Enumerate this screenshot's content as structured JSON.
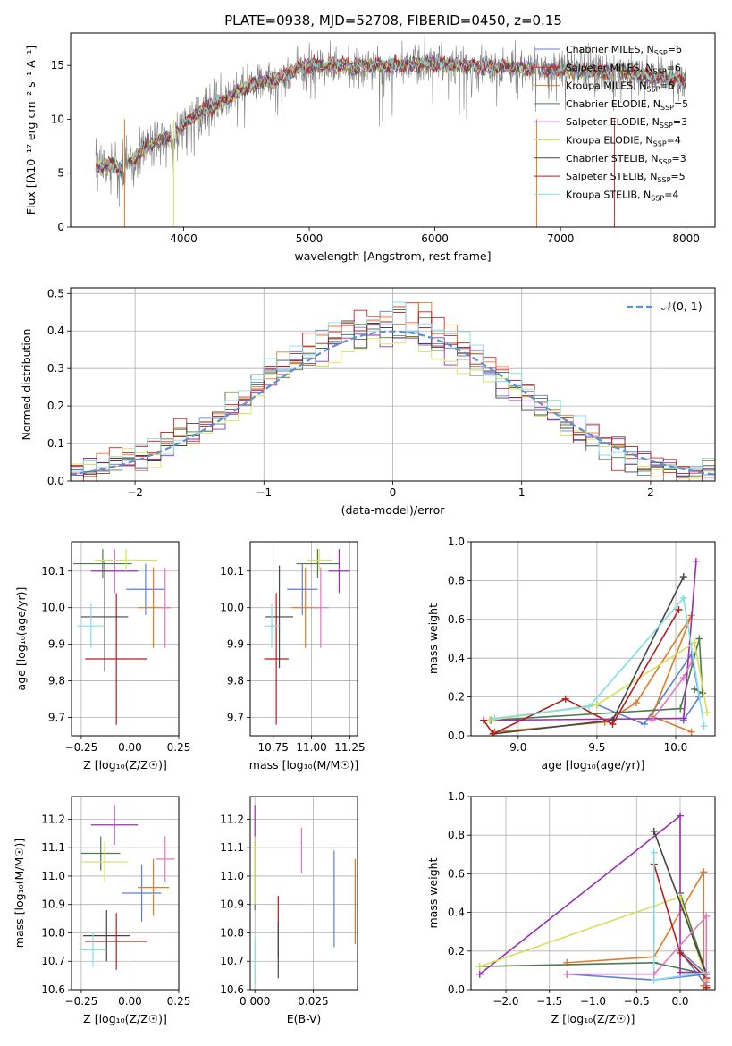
{
  "title": "PLATE=0938, MJD=52708, FIBERID=0450, z=0.15",
  "chart_data": [
    {
      "id": "spectrum",
      "type": "line",
      "xlabel": "wavelength [Angstrom, rest frame]",
      "ylabel": "Flux [f$_\\lambda$10$^{-17}$ erg cm$^{-2}$ s$^{-1}$ A$^{-1}$]",
      "ylabel_display": "Flux [fλ10⁻¹⁷ erg cm⁻² s⁻¹ A⁻¹]",
      "xlim": [
        3100,
        8230
      ],
      "ylim": [
        0,
        18
      ],
      "xticks": [
        4000,
        5000,
        6000,
        7000,
        8000
      ],
      "yticks": [
        0,
        5,
        10,
        15
      ],
      "data_continuum": {
        "x": [
          3300,
          3400,
          3500,
          3600,
          3700,
          3800,
          3900,
          4000,
          4100,
          4200,
          4300,
          4400,
          4500,
          4600,
          4700,
          4800,
          4900,
          5000,
          5200,
          5400,
          5600,
          5800,
          6000,
          6200,
          6400,
          6600,
          6800,
          7000,
          7200,
          7400,
          7600,
          7800,
          8000
        ],
        "y": [
          5.5,
          5.8,
          5.5,
          6.2,
          7.5,
          8.0,
          8.3,
          9.5,
          10.5,
          11.0,
          11.5,
          12.3,
          13.0,
          13.4,
          13.6,
          14.0,
          14.6,
          15.0,
          15.0,
          14.9,
          15.0,
          15.1,
          15.1,
          15.0,
          14.9,
          14.8,
          14.7,
          14.6,
          14.5,
          14.4,
          14.2,
          13.9,
          13.5
        ]
      },
      "legend": [
        {
          "label": "Chabrier MILES, N",
          "sub": "SSP",
          "n": "=6",
          "color": "#5b7fd6"
        },
        {
          "label": "Salpeter MILES, N",
          "sub": "SSP",
          "n": "=6",
          "color": "#d62728"
        },
        {
          "label": "Kroupa MILES, N",
          "sub": "SSP",
          "n": "=5",
          "color": "#e07b28"
        },
        {
          "label": "Chabrier ELODIE, N",
          "sub": "SSP",
          "n": "=5",
          "color": "#4d7a4d"
        },
        {
          "label": "Salpeter ELODIE, N",
          "sub": "SSP",
          "n": "=3",
          "color": "#9a2fae"
        },
        {
          "label": "Kroupa ELODIE, N",
          "sub": "SSP",
          "n": "=4",
          "color": "#d4e157"
        },
        {
          "label": "Chabrier STELIB, N",
          "sub": "SSP",
          "n": "=3",
          "color": "#444444"
        },
        {
          "label": "Salpeter STELIB, N",
          "sub": "SSP",
          "n": "=5",
          "color": "#b71c1c"
        },
        {
          "label": "Kroupa STELIB, N",
          "sub": "SSP",
          "n": "=4",
          "color": "#80deea"
        }
      ],
      "legend_placement": "right"
    },
    {
      "id": "residuals",
      "type": "histogram",
      "xlabel": "(data-model)/error",
      "ylabel": "Normed distribution",
      "xlim": [
        -2.5,
        2.5
      ],
      "ylim": [
        0,
        0.515
      ],
      "xticks": [
        -2,
        -1,
        0,
        1,
        2
      ],
      "yticks": [
        0.0,
        0.1,
        0.2,
        0.3,
        0.4,
        0.5
      ],
      "grid": true,
      "legend": [
        {
          "label": "𝒩(0, 1)",
          "color": "#5b8fd6",
          "style": "dashed"
        }
      ],
      "legend_placement": "top-right",
      "bin_width": 0.1,
      "series_colors": [
        "#5b7fd6",
        "#d62728",
        "#e07b28",
        "#4d7a4d",
        "#9a2fae",
        "#d4e157",
        "#444444",
        "#b71c1c",
        "#80deea"
      ]
    },
    {
      "id": "age-vs-Z",
      "type": "errorbar",
      "xlabel": "Z [log₁₀(Z/Z☉)]",
      "ylabel": "age  [log₁₀(age/yr)]",
      "xlim": [
        -0.3,
        0.25
      ],
      "ylim": [
        9.65,
        10.18
      ],
      "xticks": [
        -0.25,
        0.0,
        0.25
      ],
      "xticklabels": [
        "−0.25",
        "0.00",
        "0.25"
      ],
      "yticks": [
        9.7,
        9.8,
        9.9,
        10.0,
        10.1
      ],
      "grid": true,
      "points": [
        {
          "x": 0.08,
          "xerr": 0.1,
          "y": 10.05,
          "yerr": 0.07,
          "color": "#5b7fd6"
        },
        {
          "x": -0.07,
          "xerr": 0.16,
          "y": 9.86,
          "yerr": 0.18,
          "color": "#b71c1c"
        },
        {
          "x": 0.12,
          "xerr": 0.08,
          "y": 10.0,
          "yerr": 0.11,
          "color": "#e07b28"
        },
        {
          "x": -0.14,
          "xerr": 0.15,
          "y": 10.12,
          "yerr": 0.04,
          "color": "#4d7a4d"
        },
        {
          "x": -0.08,
          "xerr": 0.12,
          "y": 10.1,
          "yerr": 0.06,
          "color": "#9a2fae"
        },
        {
          "x": -0.02,
          "xerr": 0.16,
          "y": 10.13,
          "yerr": 0.03,
          "color": "#d4e157"
        },
        {
          "x": -0.13,
          "xerr": 0.12,
          "y": 9.975,
          "yerr": 0.15,
          "color": "#444444"
        },
        {
          "x": 0.18,
          "xerr": 0.03,
          "y": 10.0,
          "yerr": 0.11,
          "color": "#e377c2"
        },
        {
          "x": -0.2,
          "xerr": 0.07,
          "y": 9.95,
          "yerr": 0.06,
          "color": "#80deea"
        }
      ]
    },
    {
      "id": "age-vs-mass",
      "type": "errorbar",
      "xlabel": "mass [log₁₀(M/M☉)]",
      "ylabel": "",
      "xlim": [
        10.6,
        11.3
      ],
      "ylim": [
        9.65,
        10.18
      ],
      "xticks": [
        10.75,
        11.0,
        11.25
      ],
      "xticklabels": [
        "10.75",
        "11.00",
        "11.25"
      ],
      "yticks": [
        9.7,
        9.8,
        9.9,
        10.0,
        10.1
      ],
      "grid": true,
      "points": [
        {
          "x": 10.94,
          "xerr": 0.1,
          "y": 10.05,
          "yerr": 0.07,
          "color": "#5b7fd6"
        },
        {
          "x": 10.77,
          "xerr": 0.08,
          "y": 9.86,
          "yerr": 0.18,
          "color": "#b71c1c"
        },
        {
          "x": 10.96,
          "xerr": 0.09,
          "y": 10.0,
          "yerr": 0.11,
          "color": "#e07b28"
        },
        {
          "x": 11.04,
          "xerr": 0.14,
          "y": 10.12,
          "yerr": 0.04,
          "color": "#4d7a4d"
        },
        {
          "x": 11.18,
          "xerr": 0.07,
          "y": 10.1,
          "yerr": 0.06,
          "color": "#9a2fae"
        },
        {
          "x": 11.05,
          "xerr": 0.08,
          "y": 10.13,
          "yerr": 0.03,
          "color": "#d4e157"
        },
        {
          "x": 10.79,
          "xerr": 0.09,
          "y": 9.975,
          "yerr": 0.14,
          "color": "#444444"
        },
        {
          "x": 11.06,
          "xerr": 0.05,
          "y": 10.0,
          "yerr": 0.11,
          "color": "#e377c2"
        },
        {
          "x": 10.74,
          "xerr": 0.05,
          "y": 9.95,
          "yerr": 0.06,
          "color": "#80deea"
        }
      ]
    },
    {
      "id": "massweight-vs-age",
      "type": "line",
      "xlabel": "age  [log₁₀(age/yr)]",
      "ylabel": "mass weight",
      "xlim": [
        8.7,
        10.25
      ],
      "ylim": [
        0,
        1
      ],
      "xticks": [
        9.0,
        9.5,
        10.0
      ],
      "xticklabels": [
        "9.0",
        "9.5",
        "10.0"
      ],
      "yticks": [
        0.0,
        0.2,
        0.4,
        0.6,
        0.8,
        1.0
      ],
      "grid": true,
      "series": [
        {
          "color": "#5b7fd6",
          "x": [
            8.82,
            9.5,
            9.8,
            10.1,
            10.15,
            10.05
          ],
          "y": [
            0.08,
            0.16,
            0.06,
            0.42,
            0.2,
            0.08
          ]
        },
        {
          "color": "#e07b28",
          "x": [
            8.85,
            9.55,
            9.75,
            10.1,
            9.85,
            10.1
          ],
          "y": [
            0.02,
            0.07,
            0.17,
            0.62,
            0.1,
            0.02
          ]
        },
        {
          "color": "#4d7a4d",
          "x": [
            8.83,
            10.03,
            10.15,
            10.17,
            10.12
          ],
          "y": [
            0.08,
            0.14,
            0.5,
            0.22,
            0.24
          ]
        },
        {
          "color": "#9a2fae",
          "x": [
            8.82,
            10.05,
            10.13
          ],
          "y": [
            0.08,
            0.09,
            0.9
          ]
        },
        {
          "color": "#d4e157",
          "x": [
            8.82,
            9.5,
            10.12,
            10.2
          ],
          "y": [
            0.08,
            0.16,
            0.48,
            0.12
          ]
        },
        {
          "color": "#444444",
          "x": [
            8.84,
            9.6,
            10.05
          ],
          "y": [
            0.01,
            0.08,
            0.82
          ]
        },
        {
          "color": "#b71c1c",
          "x": [
            8.78,
            8.84,
            9.3,
            9.6,
            10.02
          ],
          "y": [
            0.08,
            0.01,
            0.19,
            0.06,
            0.65
          ]
        },
        {
          "color": "#80deea",
          "x": [
            8.85,
            9.45,
            10.05,
            10.18
          ],
          "y": [
            0.09,
            0.15,
            0.71,
            0.05
          ]
        },
        {
          "color": "#e377c2",
          "x": [
            9.85,
            10.05,
            10.1
          ],
          "y": [
            0.08,
            0.3,
            0.38
          ]
        }
      ]
    },
    {
      "id": "mass-vs-Z",
      "type": "errorbar",
      "xlabel": "Z [log₁₀(Z/Z☉)]",
      "ylabel": "mass [log₁₀(M/M☉)]",
      "xlim": [
        -0.3,
        0.25
      ],
      "ylim": [
        10.6,
        11.28
      ],
      "xticks": [
        -0.25,
        0.0,
        0.25
      ],
      "xticklabels": [
        "−0.25",
        "0.00",
        "0.25"
      ],
      "yticks": [
        10.6,
        10.7,
        10.8,
        10.9,
        11.0,
        11.1,
        11.2
      ],
      "grid": true,
      "points": [
        {
          "x": 0.06,
          "xerr": 0.1,
          "y": 10.94,
          "yerr": 0.1,
          "color": "#5b7fd6"
        },
        {
          "x": -0.07,
          "xerr": 0.16,
          "y": 10.77,
          "yerr": 0.1,
          "color": "#b71c1c"
        },
        {
          "x": 0.12,
          "xerr": 0.08,
          "y": 10.96,
          "yerr": 0.1,
          "color": "#e07b28"
        },
        {
          "x": -0.15,
          "xerr": 0.1,
          "y": 11.08,
          "yerr": 0.06,
          "color": "#4d7a4d"
        },
        {
          "x": -0.08,
          "xerr": 0.12,
          "y": 11.18,
          "yerr": 0.07,
          "color": "#9a2fae"
        },
        {
          "x": -0.13,
          "xerr": 0.12,
          "y": 11.05,
          "yerr": 0.07,
          "color": "#d4e157"
        },
        {
          "x": -0.12,
          "xerr": 0.12,
          "y": 10.79,
          "yerr": 0.09,
          "color": "#444444"
        },
        {
          "x": 0.18,
          "xerr": 0.05,
          "y": 11.06,
          "yerr": 0.08,
          "color": "#e377c2"
        },
        {
          "x": -0.19,
          "xerr": 0.07,
          "y": 10.74,
          "yerr": 0.06,
          "color": "#80deea"
        }
      ]
    },
    {
      "id": "mass-vs-EBV",
      "type": "errorbar",
      "xlabel": "E(B-V)",
      "ylabel": "",
      "xlim": [
        -0.002,
        0.044
      ],
      "ylim": [
        10.6,
        11.28
      ],
      "xticks": [
        0.0,
        0.025
      ],
      "xticklabels": [
        "0.000",
        "0.025"
      ],
      "yticks": [
        10.6,
        10.7,
        10.8,
        10.9,
        11.0,
        11.1,
        11.2
      ],
      "grid": true,
      "points": [
        {
          "x": 0.034,
          "y": 10.92,
          "yerr": 0.17,
          "color": "#5b7fd6"
        },
        {
          "x": 0.01,
          "y": 10.82,
          "yerr": 0.11,
          "color": "#b71c1c"
        },
        {
          "x": 0.043,
          "y": 10.91,
          "yerr": 0.15,
          "color": "#e07b28"
        },
        {
          "x": 0.0,
          "y": 11.0,
          "yerr": 0.12,
          "color": "#4d7a4d"
        },
        {
          "x": 0.0,
          "y": 11.17,
          "yerr": 0.08,
          "color": "#9a2fae"
        },
        {
          "x": 0.0,
          "y": 11.02,
          "yerr": 0.12,
          "color": "#d4e157"
        },
        {
          "x": 0.01,
          "y": 10.74,
          "yerr": 0.1,
          "color": "#444444"
        },
        {
          "x": 0.02,
          "y": 11.09,
          "yerr": 0.08,
          "color": "#e377c2"
        },
        {
          "x": 0.0,
          "y": 10.7,
          "yerr": 0.08,
          "color": "#80deea"
        }
      ]
    },
    {
      "id": "massweight-vs-Z",
      "type": "line",
      "xlabel": "Z [log₁₀(Z/Z☉)]",
      "ylabel": "mass weight",
      "xlim": [
        -2.4,
        0.4
      ],
      "ylim": [
        0,
        1
      ],
      "xticks": [
        -2.0,
        -1.5,
        -1.0,
        -0.5,
        0.0
      ],
      "xticklabels": [
        "−2.0",
        "−1.5",
        "−1.0",
        "−0.5",
        "0.0"
      ],
      "yticks": [
        0.0,
        0.2,
        0.4,
        0.6,
        0.8,
        1.0
      ],
      "grid": true,
      "series": [
        {
          "color": "#5b7fd6",
          "x": [
            -1.3,
            -0.3,
            0.3,
            0.0,
            0.3
          ],
          "y": [
            0.08,
            0.05,
            0.08,
            0.2,
            0.02
          ]
        },
        {
          "color": "#e07b28",
          "x": [
            -1.3,
            -0.3,
            0.27,
            0.27,
            0.3
          ],
          "y": [
            0.14,
            0.17,
            0.61,
            0.02,
            0.02
          ]
        },
        {
          "color": "#4d7a4d",
          "x": [
            -2.3,
            -0.3,
            0.3,
            0.0
          ],
          "y": [
            0.12,
            0.14,
            0.08,
            0.5
          ]
        },
        {
          "color": "#9a2fae",
          "x": [
            -2.3,
            0.0,
            0.0,
            0.3
          ],
          "y": [
            0.08,
            0.9,
            0.09,
            0.09
          ]
        },
        {
          "color": "#d4e157",
          "x": [
            -2.3,
            0.0,
            0.3
          ],
          "y": [
            0.12,
            0.48,
            0.05
          ]
        },
        {
          "color": "#444444",
          "x": [
            -0.3,
            0.3,
            0.3
          ],
          "y": [
            0.82,
            0.08,
            0.01
          ]
        },
        {
          "color": "#b71c1c",
          "x": [
            -0.3,
            0.0,
            0.3,
            0.3
          ],
          "y": [
            0.65,
            0.19,
            0.06,
            0.01
          ]
        },
        {
          "color": "#80deea",
          "x": [
            -0.3,
            -0.3,
            0.3
          ],
          "y": [
            0.71,
            0.05,
            0.09
          ]
        },
        {
          "color": "#e377c2",
          "x": [
            -1.3,
            -0.3,
            0.3,
            0.3
          ],
          "y": [
            0.08,
            0.08,
            0.38,
            0.04
          ]
        }
      ]
    }
  ]
}
